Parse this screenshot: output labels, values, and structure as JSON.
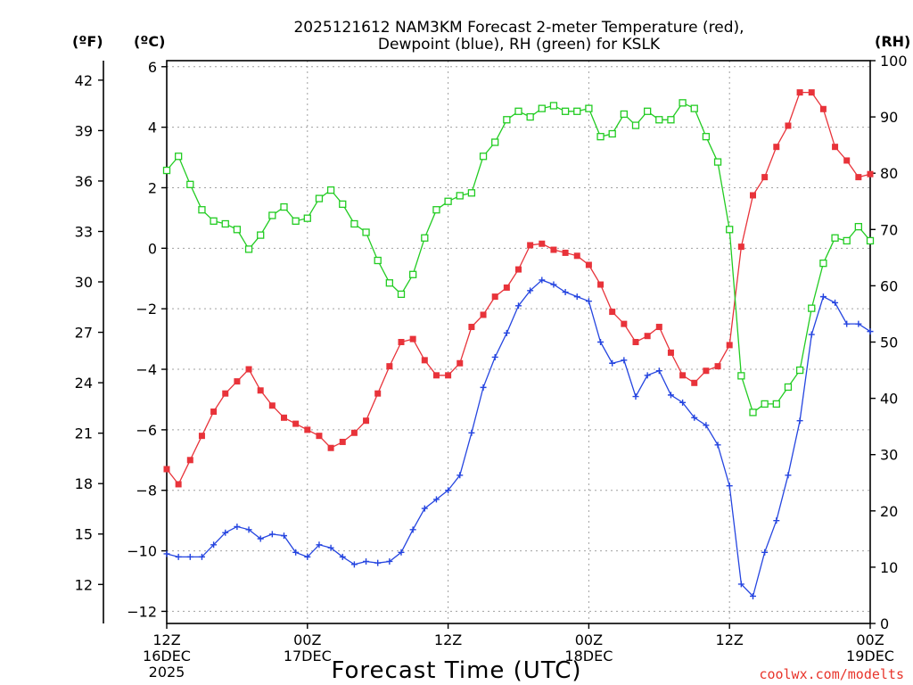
{
  "chart_data": {
    "type": "line",
    "title_line1": "2025121612 NAM3KM Forecast 2-meter Temperature (red),",
    "title_line2": "Dewpoint (blue), RH (green) for KSLK",
    "unit_f": "(ºF)",
    "unit_c": "(ºC)",
    "unit_rh": "(RH)",
    "xlabel": "Forecast Time (UTC)",
    "credit": "coolwx.com/modelts",
    "x_range_hours": [
      0,
      60
    ],
    "y_celsius_range": [
      -12.4,
      6.2
    ],
    "y_rh_range": [
      0,
      100
    ],
    "x_ticks": [
      {
        "hour": 0,
        "line1": "12Z",
        "line2": "16DEC",
        "line3": "2025"
      },
      {
        "hour": 12,
        "line1": "00Z",
        "line2": "17DEC",
        "line3": ""
      },
      {
        "hour": 24,
        "line1": "12Z",
        "line2": "",
        "line3": ""
      },
      {
        "hour": 36,
        "line1": "00Z",
        "line2": "18DEC",
        "line3": ""
      },
      {
        "hour": 48,
        "line1": "12Z",
        "line2": "",
        "line3": ""
      },
      {
        "hour": 60,
        "line1": "00Z",
        "line2": "19DEC",
        "line3": ""
      }
    ],
    "y_celsius_ticks": [
      "6",
      "4",
      "2",
      "0",
      "−2",
      "−4",
      "−6",
      "−8",
      "−10",
      "−12"
    ],
    "y_celsius_tick_values": [
      6,
      4,
      2,
      0,
      -2,
      -4,
      -6,
      -8,
      -10,
      -12
    ],
    "y_fahrenheit_ticks": [
      "42",
      "39",
      "36",
      "33",
      "30",
      "27",
      "24",
      "21",
      "18",
      "15",
      "12"
    ],
    "y_fahrenheit_tick_values": [
      42,
      39,
      36,
      33,
      30,
      27,
      24,
      21,
      18,
      15,
      12
    ],
    "y_rh_ticks": [
      "100",
      "90",
      "80",
      "70",
      "60",
      "50",
      "40",
      "30",
      "20",
      "10",
      "0"
    ],
    "y_rh_tick_values": [
      100,
      90,
      80,
      70,
      60,
      50,
      40,
      30,
      20,
      10,
      0
    ],
    "x_hours": [
      0,
      1,
      2,
      3,
      4,
      5,
      6,
      7,
      8,
      9,
      10,
      11,
      12,
      13,
      14,
      15,
      16,
      17,
      18,
      19,
      20,
      21,
      22,
      23,
      24,
      25,
      26,
      27,
      28,
      29,
      30,
      31,
      32,
      33,
      34,
      35,
      36,
      37,
      38,
      39,
      40,
      41,
      42,
      43,
      44,
      45,
      46,
      47,
      48,
      49,
      50,
      51,
      52,
      53,
      54,
      55,
      56,
      57,
      58,
      59,
      60
    ],
    "series": [
      {
        "name": "2-meter Temperature",
        "unit": "C",
        "color": "#e8333a",
        "marker": "filled-square",
        "values": [
          -7.3,
          -7.8,
          -7.0,
          -6.2,
          -5.4,
          -4.8,
          -4.4,
          -4.0,
          -4.7,
          -5.2,
          -5.6,
          -5.8,
          -6.0,
          -6.2,
          -6.6,
          -6.4,
          -6.1,
          -5.7,
          -4.8,
          -3.9,
          -3.1,
          -3.0,
          -3.7,
          -4.2,
          -4.2,
          -3.8,
          -2.6,
          -2.2,
          -1.6,
          -1.3,
          -0.7,
          0.1,
          0.15,
          -0.05,
          -0.15,
          -0.25,
          -0.55,
          -1.2,
          -2.1,
          -2.5,
          -3.1,
          -2.9,
          -2.6,
          -3.45,
          -4.2,
          -4.45,
          -4.05,
          -3.9,
          -3.2,
          0.05,
          1.75,
          2.35,
          3.35,
          4.05,
          5.15,
          5.15,
          4.6,
          3.35,
          2.9,
          2.35,
          2.45
        ]
      },
      {
        "name": "Dewpoint",
        "unit": "C",
        "color": "#2545e0",
        "marker": "plus",
        "values": [
          -10.1,
          -10.2,
          -10.2,
          -10.2,
          -9.8,
          -9.4,
          -9.2,
          -9.3,
          -9.6,
          -9.45,
          -9.5,
          -10.05,
          -10.2,
          -9.8,
          -9.9,
          -10.2,
          -10.45,
          -10.35,
          -10.4,
          -10.35,
          -10.05,
          -9.3,
          -8.6,
          -8.3,
          -8.0,
          -7.5,
          -6.1,
          -4.6,
          -3.6,
          -2.8,
          -1.9,
          -1.4,
          -1.05,
          -1.2,
          -1.45,
          -1.6,
          -1.75,
          -3.1,
          -3.8,
          -3.7,
          -4.9,
          -4.2,
          -4.05,
          -4.85,
          -5.1,
          -5.6,
          -5.85,
          -6.5,
          -7.85,
          -11.1,
          -11.5,
          -10.05,
          -9.0,
          -7.5,
          -5.7,
          -2.85,
          -1.6,
          -1.8,
          -2.5,
          -2.5,
          -2.75
        ]
      },
      {
        "name": "Relative Humidity",
        "unit": "%",
        "color": "#22cc22",
        "marker": "open-square",
        "values": [
          80.5,
          83.0,
          78.0,
          73.5,
          71.5,
          71.0,
          70.0,
          66.5,
          69.0,
          72.5,
          74.0,
          71.5,
          72.0,
          75.5,
          77.0,
          74.5,
          71.0,
          69.5,
          64.5,
          60.5,
          58.5,
          62.0,
          68.5,
          73.5,
          75.0,
          76.0,
          76.5,
          83.0,
          85.5,
          89.5,
          91.0,
          90.0,
          91.5,
          92.0,
          91.0,
          91.0,
          91.5,
          86.5,
          87.0,
          90.5,
          88.5,
          91.0,
          89.5,
          89.5,
          92.5,
          91.5,
          86.5,
          82.0,
          70.0,
          44.0,
          37.5,
          39.0,
          39.0,
          42.0,
          45.0,
          56.0,
          64.0,
          68.5,
          68.0,
          70.5,
          68.0
        ]
      }
    ]
  }
}
